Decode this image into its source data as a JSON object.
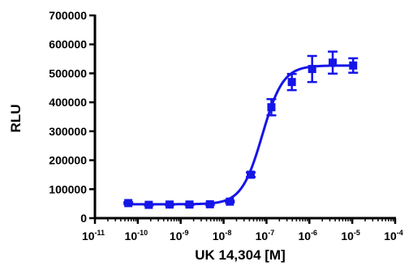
{
  "chart_data": {
    "type": "scatter",
    "title": "",
    "xlabel": "UK 14,304 [M]",
    "ylabel": "RLU",
    "x_scale": "log",
    "xlim": [
      1e-11,
      0.0001
    ],
    "ylim": [
      0,
      700000
    ],
    "x_tick_labels": [
      {
        "base": "10",
        "exp": "-11"
      },
      {
        "base": "10",
        "exp": "-10"
      },
      {
        "base": "10",
        "exp": "-9"
      },
      {
        "base": "10",
        "exp": "-8"
      },
      {
        "base": "10",
        "exp": "-7"
      },
      {
        "base": "10",
        "exp": "-6"
      },
      {
        "base": "10",
        "exp": "-5"
      },
      {
        "base": "10",
        "exp": "-4"
      }
    ],
    "y_tick_labels": [
      "0",
      "100000",
      "200000",
      "300000",
      "400000",
      "500000",
      "600000",
      "700000"
    ],
    "grid": false,
    "legend": "none",
    "color": "#1515e8",
    "series": [
      {
        "x": [
          6e-11,
          1.8e-10,
          5.5e-10,
          1.6e-09,
          4.8e-09,
          1.4e-08,
          4.3e-08,
          1.3e-07,
          3.9e-07,
          1.16e-06,
          3.5e-06,
          1.05e-05
        ],
        "y": [
          52000,
          46000,
          47000,
          47000,
          48000,
          57000,
          150000,
          383000,
          470000,
          515000,
          537000,
          527000
        ],
        "y_err": [
          3000,
          2000,
          2000,
          2000,
          2000,
          3000,
          8000,
          28000,
          28000,
          45000,
          38000,
          25000
        ]
      }
    ],
    "fit_curve": {
      "model": "sigmoidal dose-response",
      "bottom": 48000,
      "top": 527000,
      "ec50": 8e-08,
      "hill_slope": 1.8,
      "x_range": [
        6e-11,
        1.05e-05
      ]
    }
  }
}
